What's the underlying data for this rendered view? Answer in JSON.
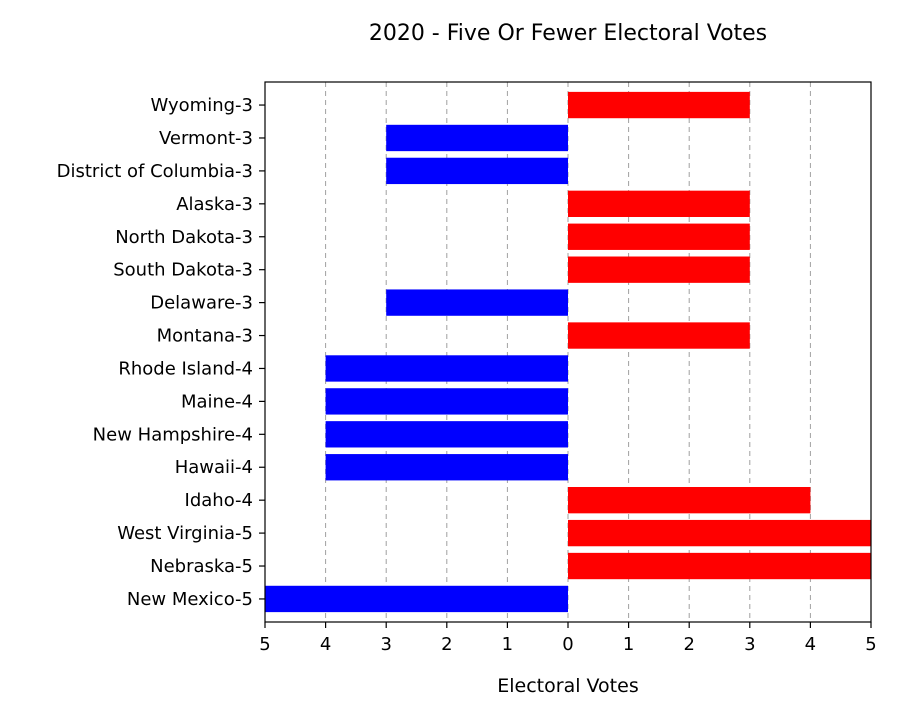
{
  "chart_data": {
    "type": "bar",
    "orientation": "horizontal-diverging",
    "title": "2020 - Five Or Fewer Electoral Votes",
    "xlabel": "Electoral Votes",
    "ylabel": "",
    "xlim": [
      -5,
      5
    ],
    "xticks": [
      -5,
      -4,
      -3,
      -2,
      -1,
      0,
      1,
      2,
      3,
      4,
      5
    ],
    "xtick_labels": [
      "5",
      "4",
      "3",
      "2",
      "1",
      "0",
      "1",
      "2",
      "3",
      "4",
      "5"
    ],
    "grid": "vertical-dashed",
    "legend": "none",
    "colors": {
      "left": "#0000ff",
      "right": "#ff0000"
    },
    "categories": [
      "Wyoming-3",
      "Vermont-3",
      "District of Columbia-3",
      "Alaska-3",
      "North Dakota-3",
      "South Dakota-3",
      "Delaware-3",
      "Montana-3",
      "Rhode Island-4",
      "Maine-4",
      "New Hampshire-4",
      "Hawaii-4",
      "Idaho-4",
      "West Virginia-5",
      "Nebraska-5",
      "New Mexico-5"
    ],
    "values": [
      3,
      -3,
      -3,
      3,
      3,
      3,
      -3,
      3,
      -4,
      -4,
      -4,
      -4,
      4,
      5,
      5,
      -5
    ]
  }
}
